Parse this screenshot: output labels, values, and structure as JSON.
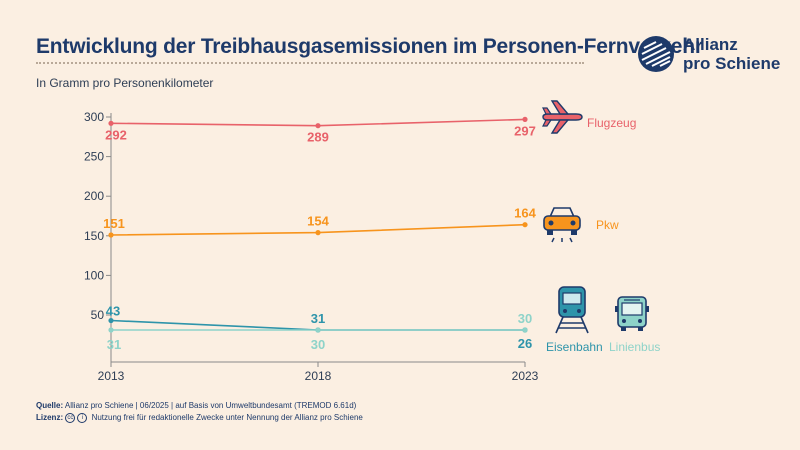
{
  "title": "Entwicklung der Treibhausgasemissionen im Personen-Fernverkehr",
  "subtitle": "In Gramm pro Personenkilometer",
  "logo": {
    "line1": "Allianz",
    "line2": "pro Schiene"
  },
  "source": {
    "label1": "Quelle:",
    "text1": "Allianz pro Schiene | 06/2025 | auf Basis von Umweltbundesamt (TREMOD 6.61d)",
    "label2": "Lizenz:",
    "cc_icon": "cc",
    "by_icon": "i",
    "text2": "Nutzung frei für redaktionelle Zwecke unter Nennung der Allianz pro Schiene"
  },
  "colors": {
    "flugzeug": "#E8626A",
    "pkw": "#F7941D",
    "eisenbahn": "#2E94AA",
    "linienbus": "#8ED3C9",
    "axis": "#8A8A8A",
    "navy": "#1E3A6A"
  },
  "icons": {
    "flugzeug": "airplane-icon",
    "pkw": "car-icon",
    "eisenbahn": "train-icon",
    "linienbus": "bus-icon"
  },
  "chart_data": {
    "type": "line",
    "x": [
      "2013",
      "2018",
      "2023"
    ],
    "yticks": [
      50,
      100,
      150,
      200,
      250,
      300
    ],
    "ylim": [
      23,
      305
    ],
    "grid": false,
    "series": [
      {
        "name": "Flugzeug",
        "values": [
          292,
          289,
          297
        ]
      },
      {
        "name": "Pkw",
        "values": [
          151,
          154,
          164
        ]
      },
      {
        "name": "Eisenbahn",
        "values": [
          43,
          31,
          26
        ]
      },
      {
        "name": "Linienbus",
        "values": [
          31,
          30,
          30
        ]
      }
    ]
  }
}
